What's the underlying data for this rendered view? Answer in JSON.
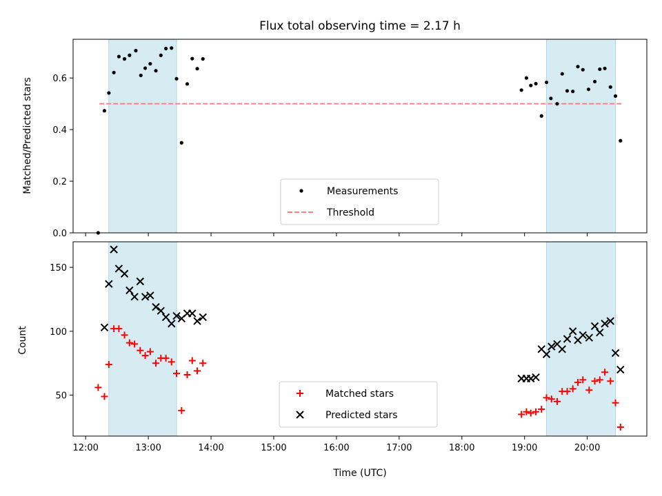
{
  "figure": {
    "title": "Flux total observing time = 2.17 h"
  },
  "colors": {
    "span_fill": "#add8e6",
    "threshold": "#ff7f7f",
    "measurement": "#000000",
    "matched": "#ff0000",
    "predicted": "#000000"
  },
  "chart_data": [
    {
      "type": "scatter",
      "ylabel": "Matched/Predicted stars",
      "xlabel": "",
      "x_unit": "hours (UTC)",
      "xlim": [
        11.8,
        20.95
      ],
      "ylim": [
        0,
        0.75
      ],
      "yticks": [
        0.0,
        0.2,
        0.4,
        0.6
      ],
      "ytick_labels": [
        "0.0",
        "0.2",
        "0.4",
        "0.6"
      ],
      "xticks": [
        12,
        13,
        14,
        15,
        16,
        17,
        18,
        19,
        20
      ],
      "xtick_labels": [
        "",
        "",
        "",
        "",
        "",
        "",
        "",
        "",
        ""
      ],
      "shaded_spans": [
        [
          12.37,
          13.45
        ],
        [
          19.35,
          20.45
        ]
      ],
      "threshold": {
        "name": "Threshold",
        "y": 0.5,
        "x_range": [
          12.22,
          20.55
        ]
      },
      "legend": {
        "placement": "lower-center",
        "entries": [
          "Measurements",
          "Threshold"
        ]
      },
      "series": [
        {
          "name": "Measurements",
          "x": [
            12.2,
            12.3,
            12.37,
            12.45,
            12.53,
            12.62,
            12.7,
            12.8,
            12.88,
            12.95,
            13.03,
            13.12,
            13.2,
            13.28,
            13.37,
            13.45,
            13.53,
            13.62,
            13.7,
            13.78,
            13.87,
            18.95,
            19.03,
            19.1,
            19.18,
            19.27,
            19.35,
            19.42,
            19.52,
            19.6,
            19.68,
            19.77,
            19.85,
            19.93,
            20.02,
            20.12,
            20.2,
            20.28,
            20.37,
            20.45,
            20.53
          ],
          "y": [
            0.0,
            0.473,
            0.542,
            0.621,
            0.683,
            0.674,
            0.688,
            0.706,
            0.61,
            0.638,
            0.655,
            0.628,
            0.688,
            0.714,
            0.716,
            0.597,
            0.349,
            0.577,
            0.675,
            0.636,
            0.674,
            0.553,
            0.6,
            0.571,
            0.578,
            0.453,
            0.583,
            0.521,
            0.5,
            0.616,
            0.55,
            0.548,
            0.644,
            0.632,
            0.556,
            0.586,
            0.634,
            0.637,
            0.565,
            0.53,
            0.357
          ]
        }
      ]
    },
    {
      "type": "scatter",
      "ylabel": "Count",
      "xlabel": "Time (UTC)",
      "x_unit": "hours (UTC)",
      "xlim": [
        11.8,
        20.95
      ],
      "ylim": [
        18,
        170
      ],
      "yticks": [
        50,
        100,
        150
      ],
      "ytick_labels": [
        "50",
        "100",
        "150"
      ],
      "xticks": [
        12,
        13,
        14,
        15,
        16,
        17,
        18,
        19,
        20
      ],
      "xtick_labels": [
        "12:00",
        "13:00",
        "14:00",
        "15:00",
        "16:00",
        "17:00",
        "18:00",
        "19:00",
        "20:00"
      ],
      "shaded_spans": [
        [
          12.37,
          13.45
        ],
        [
          19.35,
          20.45
        ]
      ],
      "legend": {
        "placement": "lower-center",
        "entries": [
          "Matched stars",
          "Predicted stars"
        ]
      },
      "series": [
        {
          "name": "Matched stars",
          "x": [
            12.2,
            12.3,
            12.37,
            12.45,
            12.53,
            12.62,
            12.7,
            12.78,
            12.87,
            12.95,
            13.03,
            13.12,
            13.2,
            13.28,
            13.37,
            13.45,
            13.53,
            13.62,
            13.7,
            13.78,
            13.87,
            18.95,
            19.03,
            19.1,
            19.18,
            19.27,
            19.35,
            19.43,
            19.52,
            19.6,
            19.68,
            19.77,
            19.85,
            19.93,
            20.03,
            20.12,
            20.2,
            20.28,
            20.37,
            20.45,
            20.53
          ],
          "y": [
            56,
            49,
            74,
            102,
            102,
            97,
            91,
            90,
            85,
            81,
            84,
            75,
            79,
            79,
            76,
            67,
            38,
            66,
            77,
            69,
            75,
            35,
            37,
            36,
            37,
            39,
            48,
            47,
            45,
            53,
            53,
            55,
            60,
            62,
            54,
            61,
            62,
            68,
            61,
            44,
            25
          ]
        },
        {
          "name": "Predicted stars",
          "x": [
            12.3,
            12.37,
            12.45,
            12.53,
            12.62,
            12.7,
            12.78,
            12.87,
            12.95,
            13.03,
            13.12,
            13.2,
            13.28,
            13.37,
            13.45,
            13.53,
            13.62,
            13.7,
            13.78,
            13.87,
            18.95,
            19.03,
            19.1,
            19.18,
            19.27,
            19.35,
            19.43,
            19.52,
            19.6,
            19.68,
            19.77,
            19.85,
            19.93,
            20.03,
            20.12,
            20.2,
            20.28,
            20.37,
            20.45,
            20.53
          ],
          "y": [
            103,
            137,
            164,
            149,
            145,
            132,
            127,
            139,
            127,
            128,
            119,
            116,
            111,
            106,
            112,
            110,
            114,
            114,
            108,
            111,
            63,
            63,
            63,
            64,
            86,
            82,
            88,
            90,
            86,
            94,
            100,
            93,
            97,
            95,
            104,
            99,
            106,
            108,
            83,
            70
          ]
        }
      ]
    }
  ]
}
